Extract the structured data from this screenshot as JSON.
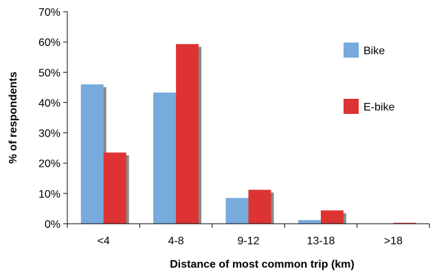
{
  "chart_data": {
    "type": "bar",
    "xlabel": "Distance of most common trip (km)",
    "ylabel": "% of respondents",
    "ylim": [
      0,
      70
    ],
    "y_ticks": [
      0,
      10,
      20,
      30,
      40,
      50,
      60,
      70
    ],
    "y_tick_labels": [
      "0%",
      "10%",
      "20%",
      "30%",
      "40%",
      "50%",
      "60%",
      "70%"
    ],
    "categories": [
      "<4",
      "4-8",
      "9-12",
      "13-18",
      ">18"
    ],
    "series": [
      {
        "name": "Bike",
        "values": [
          46,
          43.3,
          8.5,
          1.2,
          0
        ]
      },
      {
        "name": "E-bike",
        "values": [
          23.5,
          59.3,
          11.2,
          4.4,
          0.3
        ]
      }
    ],
    "legend": "right",
    "colors": {
      "Bike": "#77aadd",
      "E-bike": "#dd3333",
      "shadow": "#8a8a8a",
      "axis": "#000000"
    }
  }
}
